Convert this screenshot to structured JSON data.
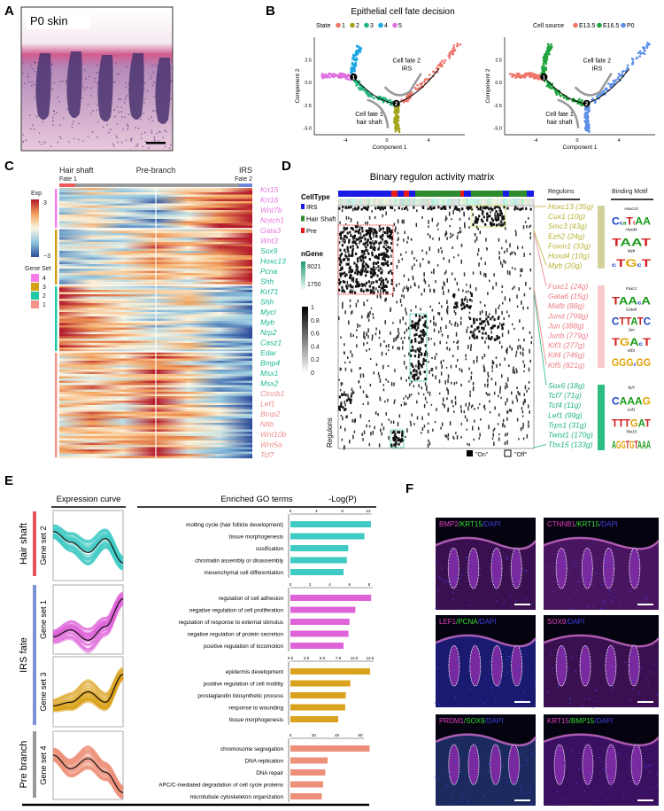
{
  "panels": {
    "A": "A",
    "B": "B",
    "C": "C",
    "D": "D",
    "E": "E",
    "F": "F"
  },
  "panelA": {
    "label": "P0 skin"
  },
  "panelB": {
    "title": "Epithelial cell fate decision",
    "legend_left_title": "State",
    "legend_left": [
      {
        "label": "1",
        "color": "#f0756b"
      },
      {
        "label": "2",
        "color": "#a3a31c"
      },
      {
        "label": "3",
        "color": "#1fb57c"
      },
      {
        "label": "4",
        "color": "#1ca7e2"
      },
      {
        "label": "5",
        "color": "#e06ee0"
      }
    ],
    "legend_right_title": "Cell source",
    "legend_right": [
      {
        "label": "E13.5",
        "color": "#f0756b"
      },
      {
        "label": "E16.5",
        "color": "#1ea33c"
      },
      {
        "label": "P0",
        "color": "#5b8fe6"
      }
    ],
    "xlabel": "Component 1",
    "ylabel": "Component 2",
    "xticks": [
      "-4",
      "0",
      "4"
    ],
    "yticks": [
      "2.5",
      "0.0",
      "-2.5",
      "-5.0"
    ],
    "annot_fate2": [
      "Cell fate 2",
      "IRS"
    ],
    "annot_fate1": [
      "Cell fate 1",
      "hair shaft"
    ],
    "branch_points": [
      "1",
      "2"
    ]
  },
  "panelC": {
    "col_left": "Hair shaft",
    "col_left_sub": "Fate 1",
    "col_mid": "Pre-branch",
    "col_right": "IRS",
    "col_right_sub": "Fate 2",
    "exp_label": "Exp",
    "exp_max": "3",
    "exp_min": "−3",
    "geneset_label": "Gene Set",
    "genesets": [
      {
        "label": "4",
        "color": "#f77ce8"
      },
      {
        "label": "3",
        "color": "#d4a017"
      },
      {
        "label": "2",
        "color": "#1fc8a0"
      },
      {
        "label": "1",
        "color": "#f4948a"
      }
    ],
    "genes": [
      {
        "name": "Krt15",
        "set": 4
      },
      {
        "name": "Krt16",
        "set": 4
      },
      {
        "name": "Wnt7b",
        "set": 4
      },
      {
        "name": "Notch1",
        "set": 4
      },
      {
        "name": "Gata3",
        "set": 4
      },
      {
        "name": "Wnt3",
        "set": 4
      },
      {
        "name": "Sox9",
        "set": 2
      },
      {
        "name": "Hoxc13",
        "set": 2
      },
      {
        "name": "Pcna",
        "set": 2
      },
      {
        "name": "Shh",
        "set": 2
      },
      {
        "name": "Krt71",
        "set": 2
      },
      {
        "name": "Shh",
        "set": 2
      },
      {
        "name": "Mycl",
        "set": 2
      },
      {
        "name": "Myb",
        "set": 2
      },
      {
        "name": "Nrp2",
        "set": 2
      },
      {
        "name": "Casz1",
        "set": 2
      },
      {
        "name": "Edar",
        "set": 2
      },
      {
        "name": "Bmp4",
        "set": 2
      },
      {
        "name": "Msx1",
        "set": 2
      },
      {
        "name": "Msx2",
        "set": 2
      },
      {
        "name": "Ctnnb1",
        "set": 1
      },
      {
        "name": "Lef1",
        "set": 1
      },
      {
        "name": "Bmp2",
        "set": 1
      },
      {
        "name": "Nfib",
        "set": 1
      },
      {
        "name": "Wnt10b",
        "set": 1
      },
      {
        "name": "Wnt5a",
        "set": 1
      },
      {
        "name": "Tcf7",
        "set": 1
      }
    ]
  },
  "panelD": {
    "title": "Binary regulon activity matrix",
    "celltype_title": "CellType",
    "celltypes": [
      {
        "label": "IRS",
        "color": "#1a1ae6"
      },
      {
        "label": "Hair Shaft",
        "color": "#2e8b2e"
      },
      {
        "label": "Pre",
        "color": "#e61a1a"
      }
    ],
    "ngene_title": "nGene",
    "ngene_max": "8021",
    "ngene_min": "1750",
    "scale_ticks": [
      "1",
      "0.8",
      "0.6",
      "0.4",
      "0.2",
      "0"
    ],
    "ylabel": "Regulons",
    "on_label": "\"On\"",
    "off_label": "\"Off\"",
    "regulons_header": "Regulons",
    "motif_header": "Binding Motif",
    "regulon_groups": [
      {
        "color": "#b5b234",
        "band": "#d3d19a",
        "items": [
          "Hoxc13 (35g)",
          "Cux1 (10g)",
          "Smc3 (43g)",
          "Ezh2 (24g)",
          "Foxm1 (33g)",
          "Hoxd4 (10g)",
          "Myb (20g)"
        ],
        "motifs": [
          {
            "name": "Hoxc13",
            "seq": "CcaTtAA"
          },
          {
            "name": "Hoxd4",
            "seq": "TAAT"
          },
          {
            "name": "Myb",
            "seq": "cTGcT"
          }
        ]
      },
      {
        "color": "#ec7d85",
        "band": "#f9c9cc",
        "items": [
          "Foxc1 (24g)",
          "Gata6 (15g)",
          "Mafb (88g)",
          "Jund (799g)",
          "Jun (388g)",
          "Junb (779g)",
          "Klf3 (277g)",
          "Klf4 (746g)",
          "Klf5 (821g)"
        ],
        "motifs": [
          {
            "name": "Foxc1",
            "seq": "TAAcA"
          },
          {
            "name": "Gata6",
            "seq": "CTTATC"
          },
          {
            "name": "Jun",
            "seq": "TGAcT"
          },
          {
            "name": "Klf3",
            "seq": "GGGcGG"
          }
        ]
      },
      {
        "color": "#1fb57c",
        "band": "#2bbd83",
        "items": [
          "Sox6 (18g)",
          "Tcf7 (71g)",
          "Tcf4 (11g)",
          "Lef1 (99g)",
          "Trps1 (31g)",
          "Twist1 (170g)",
          "Tbx15 (133g)"
        ],
        "motifs": [
          {
            "name": "Tcf7",
            "seq": "CAAAG"
          },
          {
            "name": "Lef1",
            "seq": "TTTGAT"
          },
          {
            "name": "Tbx15",
            "seq": "AGGTGTAAA"
          }
        ]
      }
    ]
  },
  "panelE": {
    "curve_header": "Expression curve",
    "go_header": "Enriched GO terms",
    "logp_header": "-Log(P)",
    "groups": [
      {
        "label": "Hair shaft",
        "color": "#e8525a"
      },
      {
        "label": "IRS fate",
        "color": "#7b93d6"
      },
      {
        "label": "Pre branch",
        "color": "#999999"
      }
    ],
    "gene_sets": [
      "Gene set 2",
      "Gene set 1",
      "Gene set 3",
      "Gene set 4"
    ]
  },
  "chart_data": [
    {
      "type": "bar",
      "orientation": "horizontal",
      "series_label": "Gene set 2",
      "color": "#3fcac4",
      "xlim": [
        0,
        12.5
      ],
      "xticks": [
        "0",
        "4",
        "8",
        "12"
      ],
      "categories": [
        "molting cycle (hair follicle development)",
        "tissue morphogenesis",
        "ossification",
        "chromatin assembly or disassembly",
        "mesenchymal cell differentiation"
      ],
      "values": [
        12.4,
        11.4,
        8.9,
        8.7,
        8.2
      ]
    },
    {
      "type": "bar",
      "orientation": "horizontal",
      "series_label": "Gene set 1",
      "color": "#df63d8",
      "xlim": [
        0,
        8.2
      ],
      "xticks": [
        "0",
        "2",
        "4",
        "6",
        "8"
      ],
      "categories": [
        "regulation of cell adhesion",
        "negative regulation of cell proliferation",
        "regulation of response to external stimulus",
        "negative regulation of protein secretion",
        "positive regulation of locomotion"
      ],
      "values": [
        8.2,
        6.6,
        6.0,
        5.9,
        5.4
      ]
    },
    {
      "type": "bar",
      "orientation": "horizontal",
      "series_label": "Gene set 3",
      "color": "#dba21d",
      "xlim": [
        0,
        12.5
      ],
      "xticks": [
        "0.0",
        "2.5",
        "5.0",
        "7.5",
        "10.0",
        "12.5"
      ],
      "categories": [
        "epidermis development",
        "positive regulation of cell motility",
        "prostaglandin biosynthetic process",
        "response to wounding",
        "tissue morphogenesis"
      ],
      "values": [
        12.5,
        9.4,
        8.7,
        8.6,
        7.5
      ]
    },
    {
      "type": "bar",
      "orientation": "horizontal",
      "series_label": "Gene set 4",
      "color": "#ec9079",
      "xlim": [
        0,
        68
      ],
      "xticks": [
        "0",
        "20",
        "40",
        "60"
      ],
      "categories": [
        "chromosome segregation",
        "DNA replication",
        "DNA repair",
        "APC/C-mediated degradation of cell cycle proteins",
        "microtubule cytoskeleton organization"
      ],
      "values": [
        68,
        32,
        30,
        28,
        27
      ]
    }
  ],
  "panelF": {
    "images": [
      [
        {
          "t": "BMP2",
          "c": "#e040c0"
        },
        {
          "t": "/KRT15",
          "c": "#33dd33"
        },
        {
          "t": "/DAPI",
          "c": "#4040e0"
        }
      ],
      [
        {
          "t": "CTNNB1",
          "c": "#e040c0"
        },
        {
          "t": "/KRT15",
          "c": "#33dd33"
        },
        {
          "t": "/DAPI",
          "c": "#4040e0"
        }
      ],
      [
        {
          "t": "LEF1",
          "c": "#e040c0"
        },
        {
          "t": "/PCNA",
          "c": "#33dd33"
        },
        {
          "t": "/DAPI",
          "c": "#4040e0"
        }
      ],
      [
        {
          "t": "SOX9",
          "c": "#e040c0"
        },
        {
          "t": "/DAPI",
          "c": "#4040e0"
        }
      ],
      [
        {
          "t": "PRDM1",
          "c": "#e040c0"
        },
        {
          "t": "/SOX9",
          "c": "#33dd33"
        },
        {
          "t": "/DAPI",
          "c": "#4040e0"
        }
      ],
      [
        {
          "t": "KRT15",
          "c": "#e040c0"
        },
        {
          "t": "/BMP15",
          "c": "#33dd33"
        },
        {
          "t": "/DAPI",
          "c": "#4040e0"
        }
      ]
    ]
  }
}
